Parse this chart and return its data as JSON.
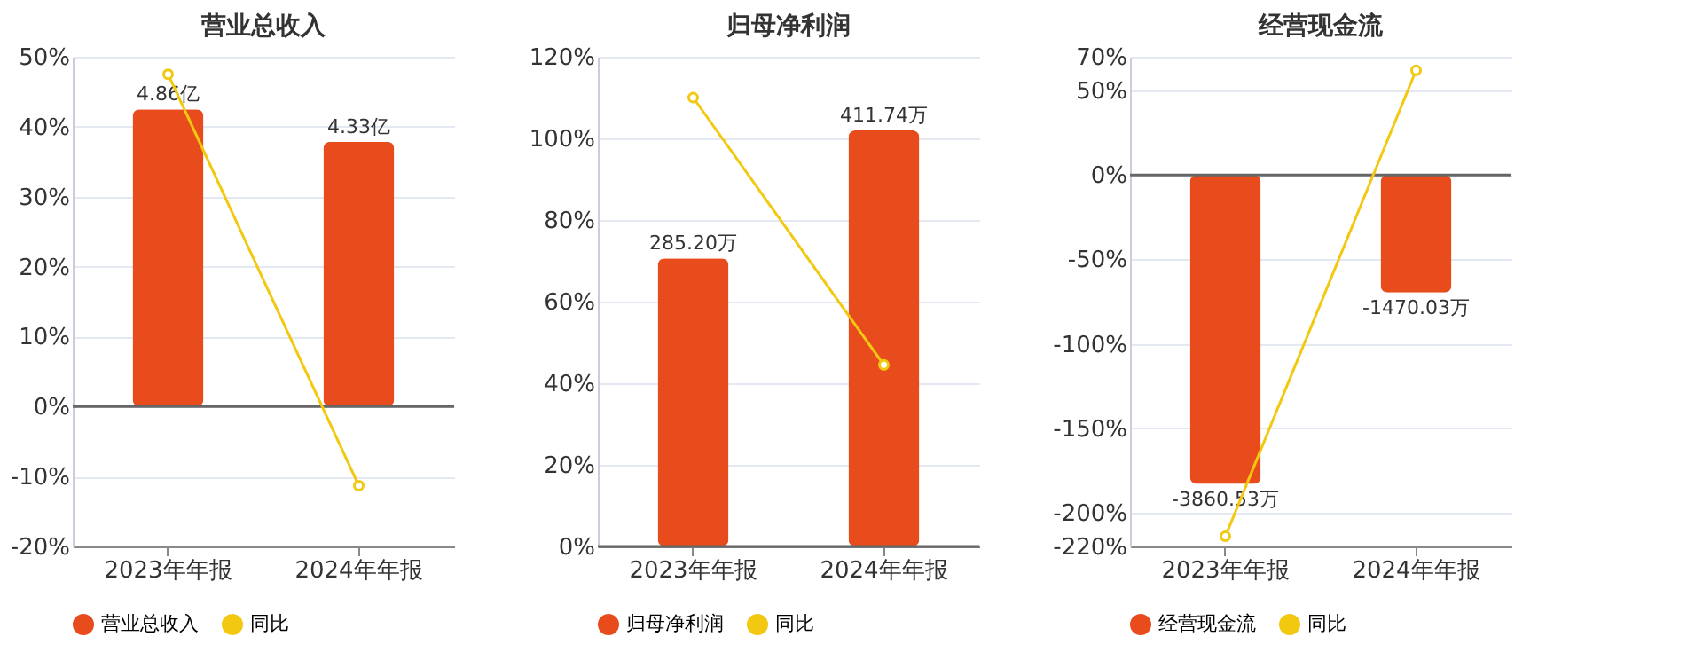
{
  "chart_data": [
    {
      "type": "bar",
      "title": "营业总收入",
      "categories": [
        "2023年年报",
        "2024年年报"
      ],
      "series": [
        {
          "name": "营业总收入",
          "axis": "y2",
          "color": "#e84c1c",
          "values": [
            4.86,
            4.33
          ],
          "value_labels": [
            "4.86亿",
            "4.33亿"
          ]
        },
        {
          "name": "同比",
          "type": "line",
          "color": "#f2c811",
          "marker": "circle",
          "values": [
            47.5,
            -11.3
          ]
        }
      ],
      "ylim": [
        -20,
        50
      ],
      "yticks": [
        {
          "value": -20,
          "label": "-20%"
        },
        {
          "value": -10,
          "label": "-10%"
        },
        {
          "value": 0,
          "label": "0%"
        },
        {
          "value": 10,
          "label": "10%"
        },
        {
          "value": 20,
          "label": "20%"
        },
        {
          "value": 30,
          "label": "30%"
        },
        {
          "value": 40,
          "label": "40%"
        },
        {
          "value": 50,
          "label": "50%"
        }
      ],
      "y2lim": [
        -2.29,
        5.72
      ],
      "grid": "y",
      "legend": "bottom"
    },
    {
      "type": "bar",
      "title": "归母净利润",
      "categories": [
        "2023年年报",
        "2024年年报"
      ],
      "series": [
        {
          "name": "归母净利润",
          "axis": "y2",
          "color": "#e84c1c",
          "values": [
            285.2,
            411.74
          ],
          "value_labels": [
            "285.20万",
            "411.74万"
          ]
        },
        {
          "name": "同比",
          "type": "line",
          "color": "#f2c811",
          "marker": "circle",
          "values": [
            110,
            44.5
          ]
        }
      ],
      "ylim": [
        0,
        120
      ],
      "yticks": [
        {
          "value": 0,
          "label": "0%"
        },
        {
          "value": 20,
          "label": "20%"
        },
        {
          "value": 40,
          "label": "40%"
        },
        {
          "value": 60,
          "label": "60%"
        },
        {
          "value": 80,
          "label": "80%"
        },
        {
          "value": 100,
          "label": "100%"
        },
        {
          "value": 120,
          "label": "120%"
        }
      ],
      "y2lim": [
        0,
        484.6
      ],
      "grid": "y",
      "legend": "bottom"
    },
    {
      "type": "bar",
      "title": "经营现金流",
      "categories": [
        "2023年年报",
        "2024年年报"
      ],
      "series": [
        {
          "name": "经营现金流",
          "axis": "y2",
          "color": "#e84c1c",
          "values": [
            -3860.53,
            -1470.03
          ],
          "value_labels": [
            "-3860.53万",
            "-1470.03万"
          ]
        },
        {
          "name": "同比",
          "type": "line",
          "color": "#f2c811",
          "marker": "circle",
          "values": [
            -214,
            62
          ]
        }
      ],
      "ylim": [
        -220,
        70
      ],
      "yticks": [
        {
          "value": -220,
          "label": "-220%"
        },
        {
          "value": -200,
          "label": "-200%"
        },
        {
          "value": -150,
          "label": "-150%"
        },
        {
          "value": -100,
          "label": "-100%"
        },
        {
          "value": -50,
          "label": "-50%"
        },
        {
          "value": 0,
          "label": "0%"
        },
        {
          "value": 50,
          "label": "50%"
        },
        {
          "value": 70,
          "label": "70%"
        }
      ],
      "y2lim": [
        -4642,
        1477
      ],
      "grid": "y",
      "legend": "bottom"
    }
  ]
}
